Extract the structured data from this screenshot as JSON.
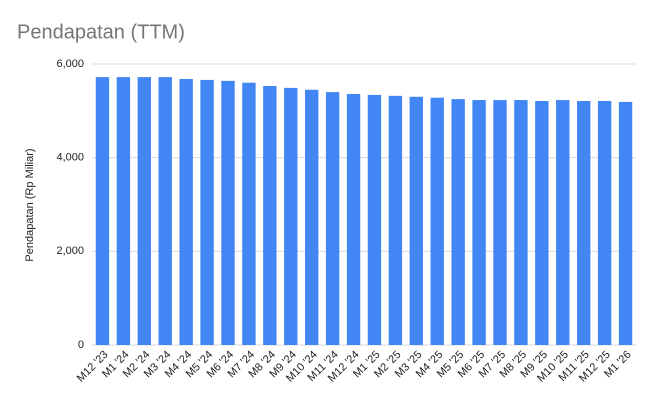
{
  "chart_data": {
    "type": "bar",
    "title": "Pendapatan (TTM)",
    "y_label": "Pendapatan (Rp Miliar)",
    "categories": [
      "M12 '23",
      "M1 '24",
      "M2 '24",
      "M3 '24",
      "M4 '24",
      "M5 '24",
      "M6 '24",
      "M7 '24",
      "M8 '24",
      "M9 '24",
      "M10 '24",
      "M11 '24",
      "M12 '24",
      "M1 '25",
      "M2 '25",
      "M3 '25",
      "M4 '25",
      "M5 '25",
      "M6 '25",
      "M7 '25",
      "M8 '25",
      "M9 '25",
      "M10 '25",
      "M11 '25",
      "M12 '25",
      "M1 '26"
    ],
    "values": [
      5720,
      5720,
      5720,
      5720,
      5680,
      5660,
      5640,
      5600,
      5530,
      5490,
      5450,
      5400,
      5360,
      5340,
      5320,
      5300,
      5280,
      5250,
      5230,
      5230,
      5230,
      5210,
      5230,
      5210,
      5210,
      5190
    ],
    "color": "#4285f4",
    "ylim": [
      0,
      6000
    ],
    "yticks": [
      0,
      {
        "value": 2000,
        "label": "2,000"
      },
      {
        "value": 4000,
        "label": "4,000"
      },
      {
        "value": 6000,
        "label": "6,000"
      }
    ],
    "grid": true
  }
}
